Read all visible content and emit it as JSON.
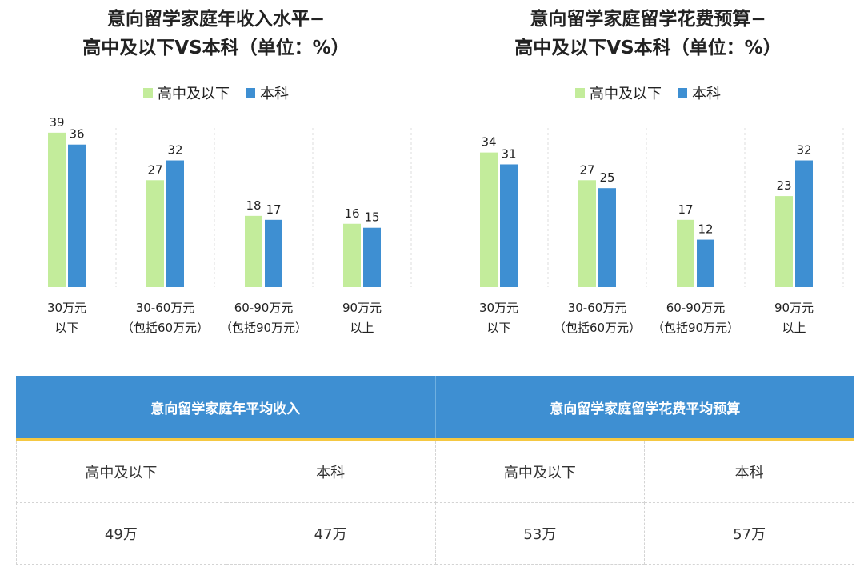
{
  "colors": {
    "series_a": "#c3ec9b",
    "series_b": "#3e8fd2",
    "header_bg": "#3e8fd2",
    "rule": "#f5c842"
  },
  "chart_data": [
    {
      "type": "bar",
      "title_lines": [
        "意向留学家庭年收入水平−",
        "高中及以下VS本科（单位：%）"
      ],
      "categories": [
        [
          "30万元",
          "以下"
        ],
        [
          "30-60万元",
          "（包括60万元）"
        ],
        [
          "60-90万元",
          "（包括90万元）"
        ],
        [
          "90万元",
          "以上"
        ]
      ],
      "series": [
        {
          "name": "高中及以下",
          "values": [
            39,
            27,
            18,
            16
          ]
        },
        {
          "name": "本科",
          "values": [
            36,
            32,
            17,
            15
          ]
        }
      ],
      "ylim": [
        0,
        42
      ],
      "grid": "dashed vertical separators",
      "legend": "top-center"
    },
    {
      "type": "bar",
      "title_lines": [
        "意向留学家庭留学花费预算−",
        "高中及以下VS本科（单位：%）"
      ],
      "categories": [
        [
          "30万元",
          "以下"
        ],
        [
          "30-60万元",
          "（包括60万元）"
        ],
        [
          "60-90万元",
          "（包括90万元）"
        ],
        [
          "90万元",
          "以上"
        ]
      ],
      "series": [
        {
          "name": "高中及以下",
          "values": [
            34,
            27,
            17,
            23
          ]
        },
        {
          "name": "本科",
          "values": [
            31,
            25,
            12,
            32
          ]
        }
      ],
      "ylim": [
        0,
        42
      ],
      "grid": "dashed vertical separators",
      "legend": "top-center"
    }
  ],
  "summary_table": {
    "headers": [
      "意向留学家庭年平均收入",
      "意向留学家庭留学花费平均预算"
    ],
    "labels": [
      "高中及以下",
      "本科",
      "高中及以下",
      "本科"
    ],
    "values": [
      "49万",
      "47万",
      "53万",
      "57万"
    ]
  }
}
